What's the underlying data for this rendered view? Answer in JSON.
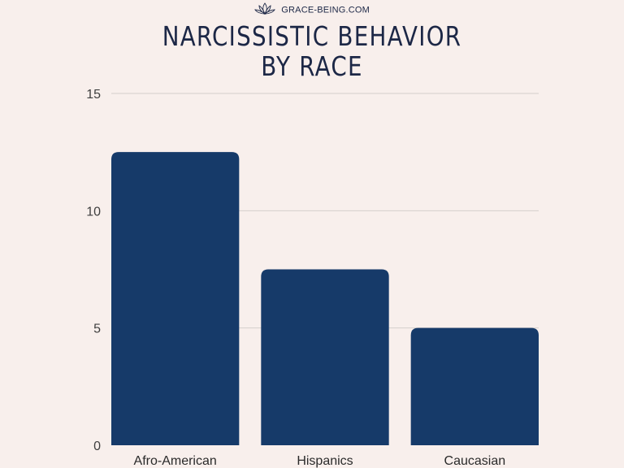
{
  "brand": {
    "text": "GRACE-BEING.COM",
    "icon": "lotus-icon"
  },
  "colors": {
    "background": "#f8efec",
    "bar": "#163a69",
    "title": "#1c2746",
    "gridline": "#d5cfcc"
  },
  "chart_data": {
    "type": "bar",
    "title_lines": [
      "NARCISSISTIC BEHAVIOR",
      "BY RACE"
    ],
    "categories": [
      "Afro-American",
      "Hispanics",
      "Caucasian"
    ],
    "values": [
      12.5,
      7.5,
      5
    ],
    "ylim": [
      0,
      15
    ],
    "yticks": [
      0,
      5,
      10,
      15
    ],
    "xlabel": "",
    "ylabel": "",
    "grid": true,
    "legend": "none"
  }
}
